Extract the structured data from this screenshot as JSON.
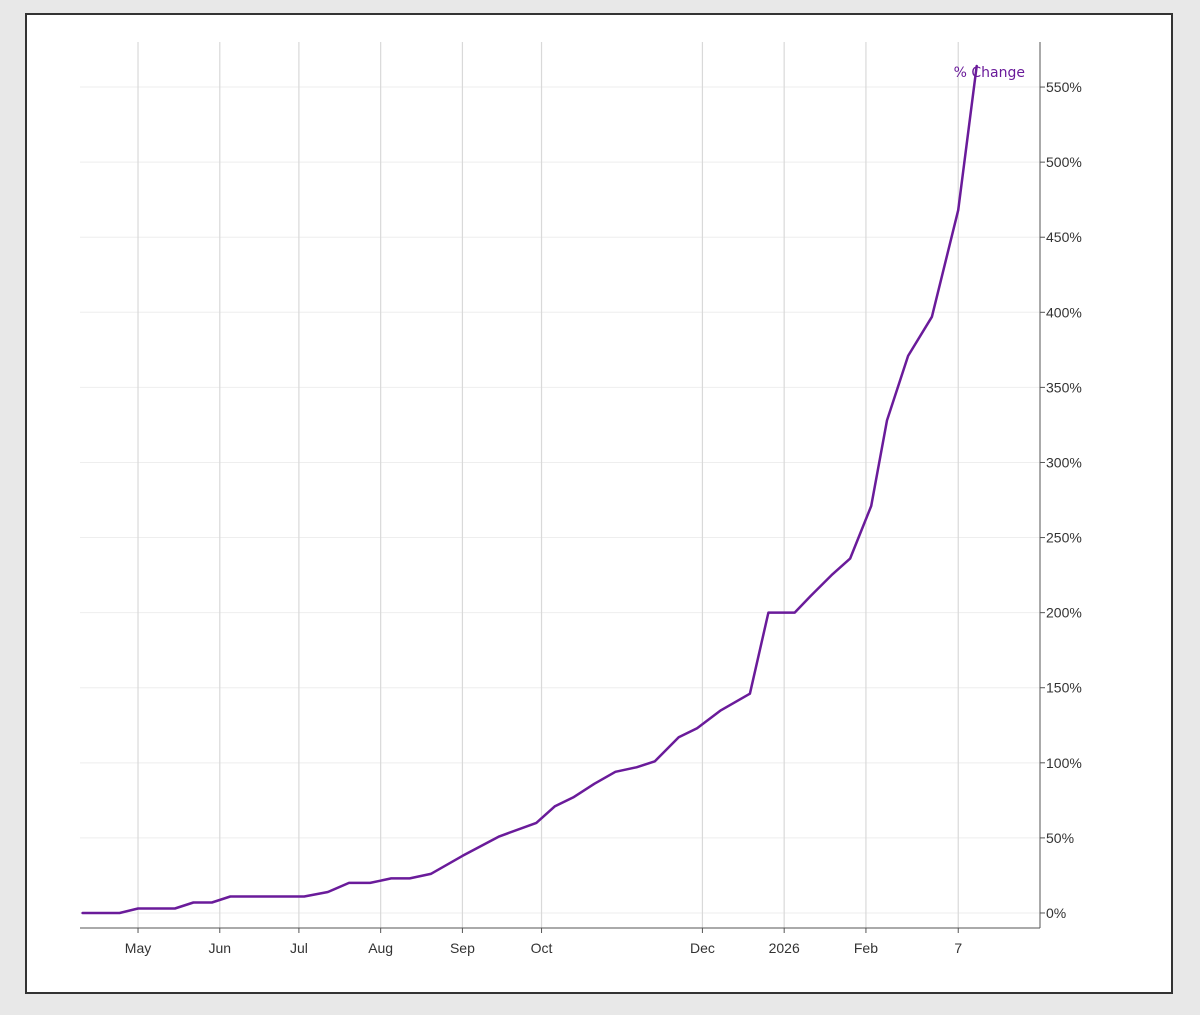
{
  "chart_data": {
    "type": "line",
    "series": [
      {
        "name": "% Change",
        "color": "#6a1b9a",
        "points": [
          [
            "2025-04-10",
            0
          ],
          [
            "2025-04-24",
            0
          ],
          [
            "2025-05-01",
            3
          ],
          [
            "2025-05-15",
            3
          ],
          [
            "2025-05-22",
            7
          ],
          [
            "2025-05-29",
            7
          ],
          [
            "2025-06-05",
            11
          ],
          [
            "2025-07-03",
            11
          ],
          [
            "2025-07-12",
            14
          ],
          [
            "2025-07-20",
            20
          ],
          [
            "2025-07-28",
            20
          ],
          [
            "2025-08-05",
            23
          ],
          [
            "2025-08-12",
            23
          ],
          [
            "2025-08-20",
            26
          ],
          [
            "2025-09-01",
            38
          ],
          [
            "2025-09-15",
            51
          ],
          [
            "2025-09-29",
            60
          ],
          [
            "2025-10-06",
            71
          ],
          [
            "2025-10-13",
            77
          ],
          [
            "2025-10-21",
            86
          ],
          [
            "2025-10-29",
            94
          ],
          [
            "2025-11-06",
            97
          ],
          [
            "2025-11-13",
            101
          ],
          [
            "2025-11-22",
            117
          ],
          [
            "2025-11-29",
            123
          ],
          [
            "2025-12-08",
            135
          ],
          [
            "2025-12-19",
            146
          ],
          [
            "2025-12-26",
            200
          ],
          [
            "2026-01-05",
            200
          ],
          [
            "2026-01-11",
            211
          ],
          [
            "2026-01-19",
            225
          ],
          [
            "2026-01-26",
            236
          ],
          [
            "2026-02-03",
            271
          ],
          [
            "2026-02-09",
            328
          ],
          [
            "2026-02-17",
            371
          ],
          [
            "2026-02-26",
            397
          ],
          [
            "2026-03-08",
            468
          ],
          [
            "2026-03-15",
            564
          ]
        ]
      }
    ],
    "x_ticks": [
      {
        "date": "2025-05-01",
        "label": "May"
      },
      {
        "date": "2025-06-01",
        "label": "Jun"
      },
      {
        "date": "2025-07-01",
        "label": "Jul"
      },
      {
        "date": "2025-08-01",
        "label": "Aug"
      },
      {
        "date": "2025-09-01",
        "label": "Sep"
      },
      {
        "date": "2025-10-01",
        "label": "Oct"
      },
      {
        "date": "2025-12-01",
        "label": "Dec"
      },
      {
        "date": "2026-01-01",
        "label": "2026"
      },
      {
        "date": "2026-02-01",
        "label": "Feb"
      },
      {
        "date": "2026-03-08",
        "label": "7"
      }
    ],
    "y_ticks": [
      0,
      50,
      100,
      150,
      200,
      250,
      300,
      350,
      400,
      450,
      500,
      550
    ],
    "y_tick_suffix": "%",
    "xlim": [
      "2025-04-09",
      "2026-04-08"
    ],
    "ylim": [
      -10,
      580
    ],
    "y_axis_position": "right",
    "grid": true,
    "legend": "inline-label top-right",
    "title": "",
    "xlabel": "",
    "ylabel": ""
  },
  "colors": {
    "line": "#6a1b9a",
    "grid_vertical": "#d9d9d9",
    "grid_horizontal": "#eeeeee",
    "axis": "#555555",
    "frame_border": "#333333",
    "background": "#e8e8e8"
  }
}
